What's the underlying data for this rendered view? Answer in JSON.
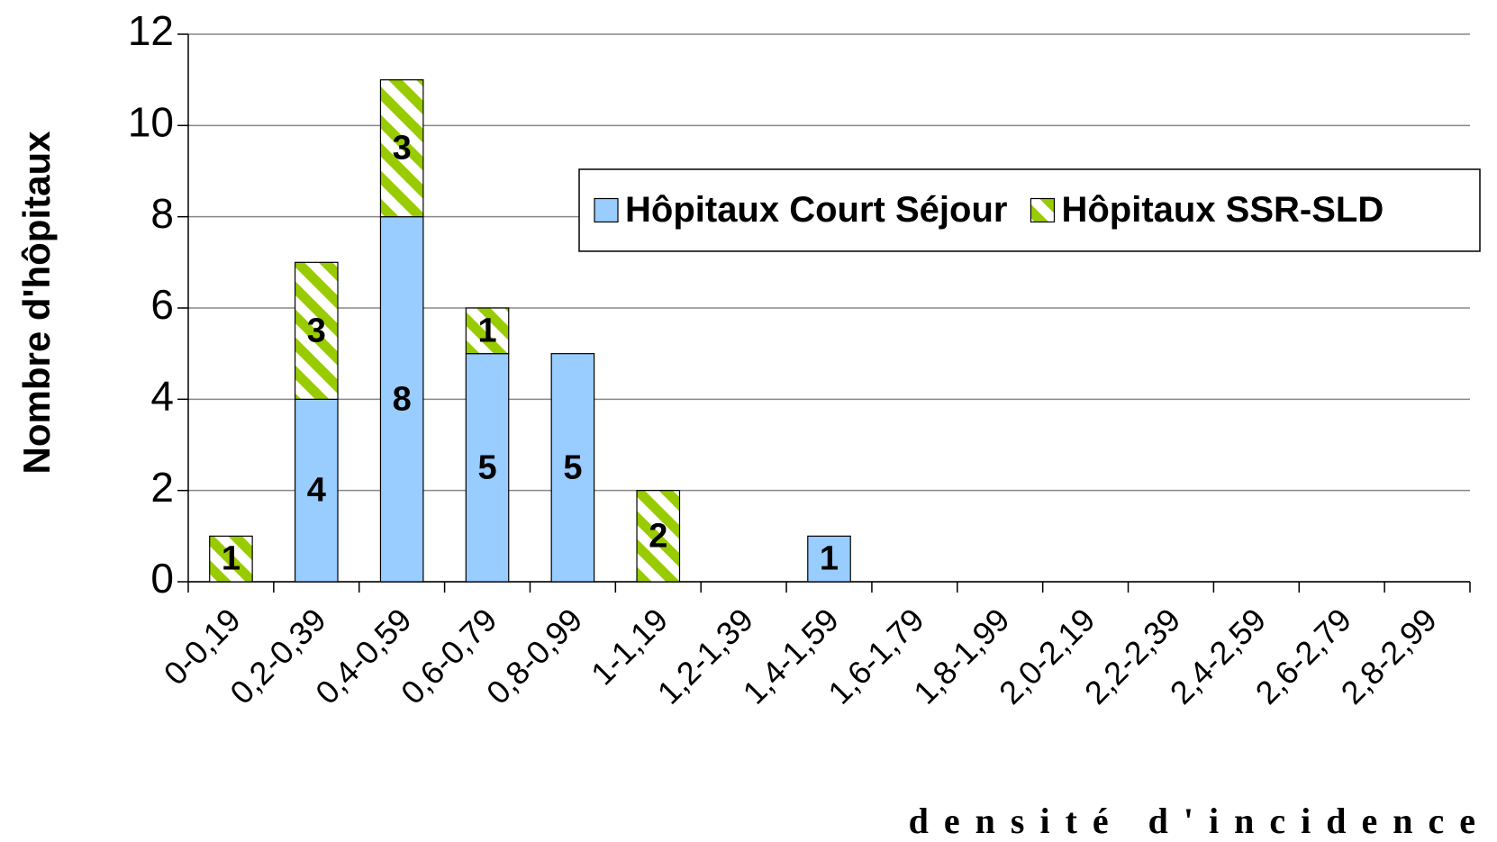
{
  "chart_data": {
    "type": "stacked_bar",
    "y_label": "Nombre d'hôpitaux",
    "x_label": "densité d'incidence",
    "categories": [
      "0-0,19",
      "0,2-0,39",
      "0,4-0,59",
      "0,6-0,79",
      "0,8-0,99",
      "1-1,19",
      "1,2-1,39",
      "1,4-1,59",
      "1,6-1,79",
      "1,8-1,99",
      "2,0-2,19",
      "2,2-2,39",
      "2,4-2,59",
      "2,6-2,79",
      "2,8-2,99"
    ],
    "series": [
      {
        "name": "Hôpitaux Court Séjour",
        "color": "#99ccff",
        "values": [
          null,
          4,
          8,
          5,
          5,
          null,
          null,
          1,
          null,
          null,
          null,
          null,
          null,
          null,
          null
        ]
      },
      {
        "name": "Hôpitaux SSR-SLD",
        "color": "#99cc00",
        "pattern": "hatched",
        "values": [
          1,
          3,
          3,
          1,
          null,
          2,
          null,
          null,
          null,
          null,
          null,
          null,
          null,
          null,
          null
        ]
      }
    ],
    "ylim": [
      0,
      12
    ],
    "yticks": [
      0,
      2,
      4,
      6,
      8,
      10,
      12
    ],
    "grid": true,
    "legend": "upper right"
  }
}
